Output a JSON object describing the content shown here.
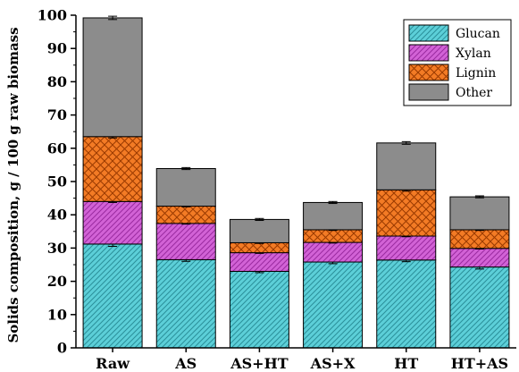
{
  "chart_data": {
    "type": "bar",
    "stacked": true,
    "categories": [
      "Raw",
      "AS",
      "AS+HT",
      "AS+X",
      "HT",
      "HT+AS"
    ],
    "series": [
      {
        "name": "Glucan",
        "values": [
          31.2,
          26.5,
          23.0,
          25.8,
          26.4,
          24.3
        ],
        "errors": [
          0.7,
          0.5,
          0.4,
          0.5,
          0.5,
          0.6
        ],
        "color": "#5ccfd8",
        "pattern": "diagonal"
      },
      {
        "name": "Xylan",
        "values": [
          12.8,
          10.9,
          5.6,
          5.9,
          7.2,
          5.6
        ],
        "errors": [
          0.3,
          0.2,
          0.2,
          0.2,
          0.2,
          0.2
        ],
        "color": "#d262d6",
        "pattern": "diagonal"
      },
      {
        "name": "Lignin",
        "values": [
          19.5,
          5.2,
          3.0,
          3.8,
          13.9,
          5.6
        ],
        "errors": [
          0.4,
          0.2,
          0.2,
          0.2,
          0.4,
          0.2
        ],
        "color": "#f37b25",
        "pattern": "crosshatch"
      },
      {
        "name": "Other",
        "values": [
          35.7,
          11.3,
          7.0,
          8.2,
          14.1,
          9.9
        ],
        "errors": [
          0.5,
          0.3,
          0.3,
          0.3,
          0.4,
          0.3
        ],
        "color": "#8c8c8c",
        "pattern": "solid"
      }
    ],
    "title": "",
    "xlabel": "",
    "ylabel": "Solids composition, g / 100 g raw biomass",
    "ylim": [
      0,
      100
    ],
    "yticks": [
      0,
      10,
      20,
      30,
      40,
      50,
      60,
      70,
      80,
      90,
      100
    ],
    "legend": {
      "position": "top-right",
      "entries": [
        "Glucan",
        "Xylan",
        "Lignin",
        "Other"
      ]
    },
    "grid": false
  }
}
